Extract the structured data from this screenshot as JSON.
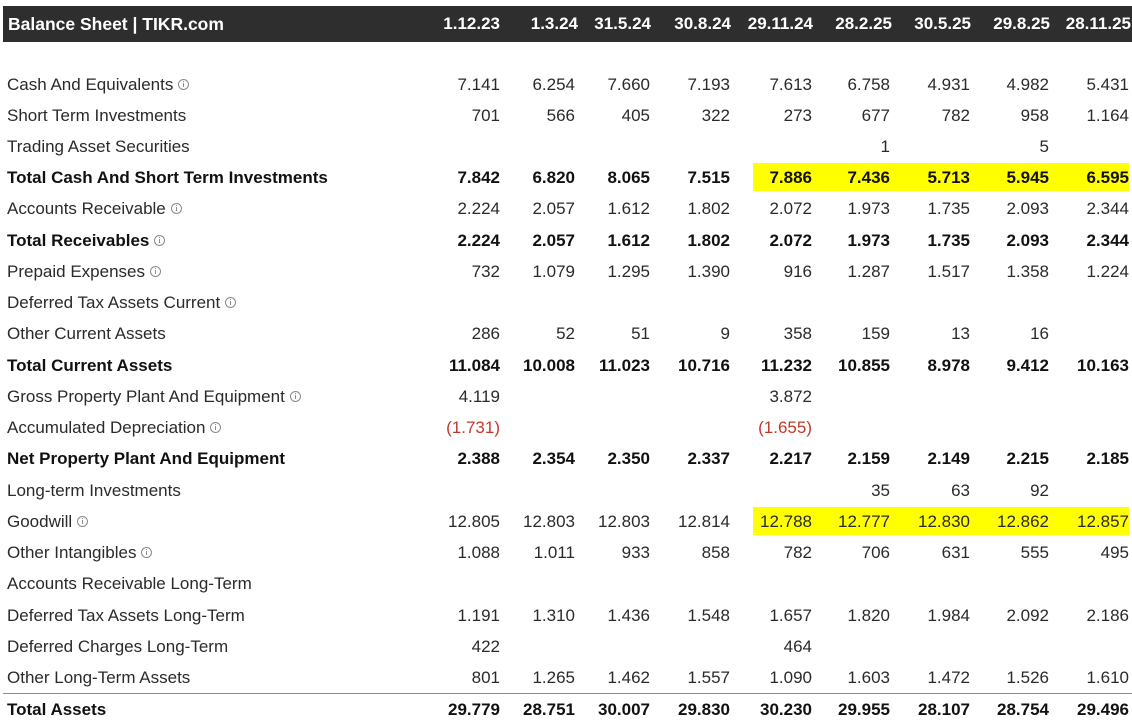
{
  "header": {
    "title": "Balance Sheet | TIKR.com",
    "columns": [
      "1.12.23",
      "1.3.24",
      "31.5.24",
      "30.8.24",
      "29.11.24",
      "28.2.25",
      "30.5.25",
      "29.8.25",
      "28.11.25"
    ]
  },
  "highlight_color": "#ffff00",
  "negative_color": "#c0392b",
  "icons": {
    "info": "info-circle-icon"
  },
  "rows": [
    {
      "label": "Cash And Equivalents",
      "info": true,
      "bold": false,
      "values": [
        "7.141",
        "6.254",
        "7.660",
        "7.193",
        "7.613",
        "6.758",
        "4.931",
        "4.982",
        "5.431"
      ]
    },
    {
      "label": "Short Term Investments",
      "info": false,
      "bold": false,
      "values": [
        "701",
        "566",
        "405",
        "322",
        "273",
        "677",
        "782",
        "958",
        "1.164"
      ]
    },
    {
      "label": "Trading Asset Securities",
      "info": false,
      "bold": false,
      "values": [
        "",
        "",
        "",
        "",
        "",
        "1",
        "",
        "5",
        ""
      ]
    },
    {
      "label": "Total Cash And Short Term Investments",
      "info": false,
      "bold": true,
      "highlight": true,
      "values": [
        "7.842",
        "6.820",
        "8.065",
        "7.515",
        "7.886",
        "7.436",
        "5.713",
        "5.945",
        "6.595"
      ]
    },
    {
      "label": "Accounts Receivable",
      "info": true,
      "bold": false,
      "values": [
        "2.224",
        "2.057",
        "1.612",
        "1.802",
        "2.072",
        "1.973",
        "1.735",
        "2.093",
        "2.344"
      ]
    },
    {
      "label": "Total Receivables",
      "info": true,
      "bold": true,
      "values": [
        "2.224",
        "2.057",
        "1.612",
        "1.802",
        "2.072",
        "1.973",
        "1.735",
        "2.093",
        "2.344"
      ]
    },
    {
      "label": "Prepaid Expenses",
      "info": true,
      "bold": false,
      "values": [
        "732",
        "1.079",
        "1.295",
        "1.390",
        "916",
        "1.287",
        "1.517",
        "1.358",
        "1.224"
      ]
    },
    {
      "label": "Deferred Tax Assets Current",
      "info": true,
      "bold": false,
      "values": [
        "",
        "",
        "",
        "",
        "",
        "",
        "",
        "",
        ""
      ]
    },
    {
      "label": "Other Current Assets",
      "info": false,
      "bold": false,
      "values": [
        "286",
        "52",
        "51",
        "9",
        "358",
        "159",
        "13",
        "16",
        ""
      ]
    },
    {
      "label": "Total Current Assets",
      "info": false,
      "bold": true,
      "values": [
        "11.084",
        "10.008",
        "11.023",
        "10.716",
        "11.232",
        "10.855",
        "8.978",
        "9.412",
        "10.163"
      ]
    },
    {
      "label": "Gross Property Plant And Equipment",
      "info": true,
      "bold": false,
      "values": [
        "4.119",
        "",
        "",
        "",
        "3.872",
        "",
        "",
        "",
        ""
      ]
    },
    {
      "label": "Accumulated Depreciation",
      "info": true,
      "bold": false,
      "values": [
        "(1.731)",
        "",
        "",
        "",
        "(1.655)",
        "",
        "",
        "",
        ""
      ]
    },
    {
      "label": "Net Property Plant And Equipment",
      "info": false,
      "bold": true,
      "values": [
        "2.388",
        "2.354",
        "2.350",
        "2.337",
        "2.217",
        "2.159",
        "2.149",
        "2.215",
        "2.185"
      ]
    },
    {
      "label": "Long-term Investments",
      "info": false,
      "bold": false,
      "values": [
        "",
        "",
        "",
        "",
        "",
        "35",
        "63",
        "92",
        ""
      ]
    },
    {
      "label": "Goodwill",
      "info": true,
      "bold": false,
      "highlight": true,
      "values": [
        "12.805",
        "12.803",
        "12.803",
        "12.814",
        "12.788",
        "12.777",
        "12.830",
        "12.862",
        "12.857"
      ]
    },
    {
      "label": "Other Intangibles",
      "info": true,
      "bold": false,
      "values": [
        "1.088",
        "1.011",
        "933",
        "858",
        "782",
        "706",
        "631",
        "555",
        "495"
      ]
    },
    {
      "label": "Accounts Receivable Long-Term",
      "info": false,
      "bold": false,
      "values": [
        "",
        "",
        "",
        "",
        "",
        "",
        "",
        "",
        ""
      ]
    },
    {
      "label": "Deferred Tax Assets Long-Term",
      "info": false,
      "bold": false,
      "values": [
        "1.191",
        "1.310",
        "1.436",
        "1.548",
        "1.657",
        "1.820",
        "1.984",
        "2.092",
        "2.186"
      ]
    },
    {
      "label": "Deferred Charges Long-Term",
      "info": false,
      "bold": false,
      "values": [
        "422",
        "",
        "",
        "",
        "464",
        "",
        "",
        "",
        ""
      ]
    },
    {
      "label": "Other Long-Term Assets",
      "info": false,
      "bold": false,
      "values": [
        "801",
        "1.265",
        "1.462",
        "1.557",
        "1.090",
        "1.603",
        "1.472",
        "1.526",
        "1.610"
      ]
    },
    {
      "label": "Total Assets",
      "info": false,
      "bold": true,
      "values": [
        "29.779",
        "28.751",
        "30.007",
        "29.830",
        "30.230",
        "29.955",
        "28.107",
        "28.754",
        "29.496"
      ]
    }
  ]
}
